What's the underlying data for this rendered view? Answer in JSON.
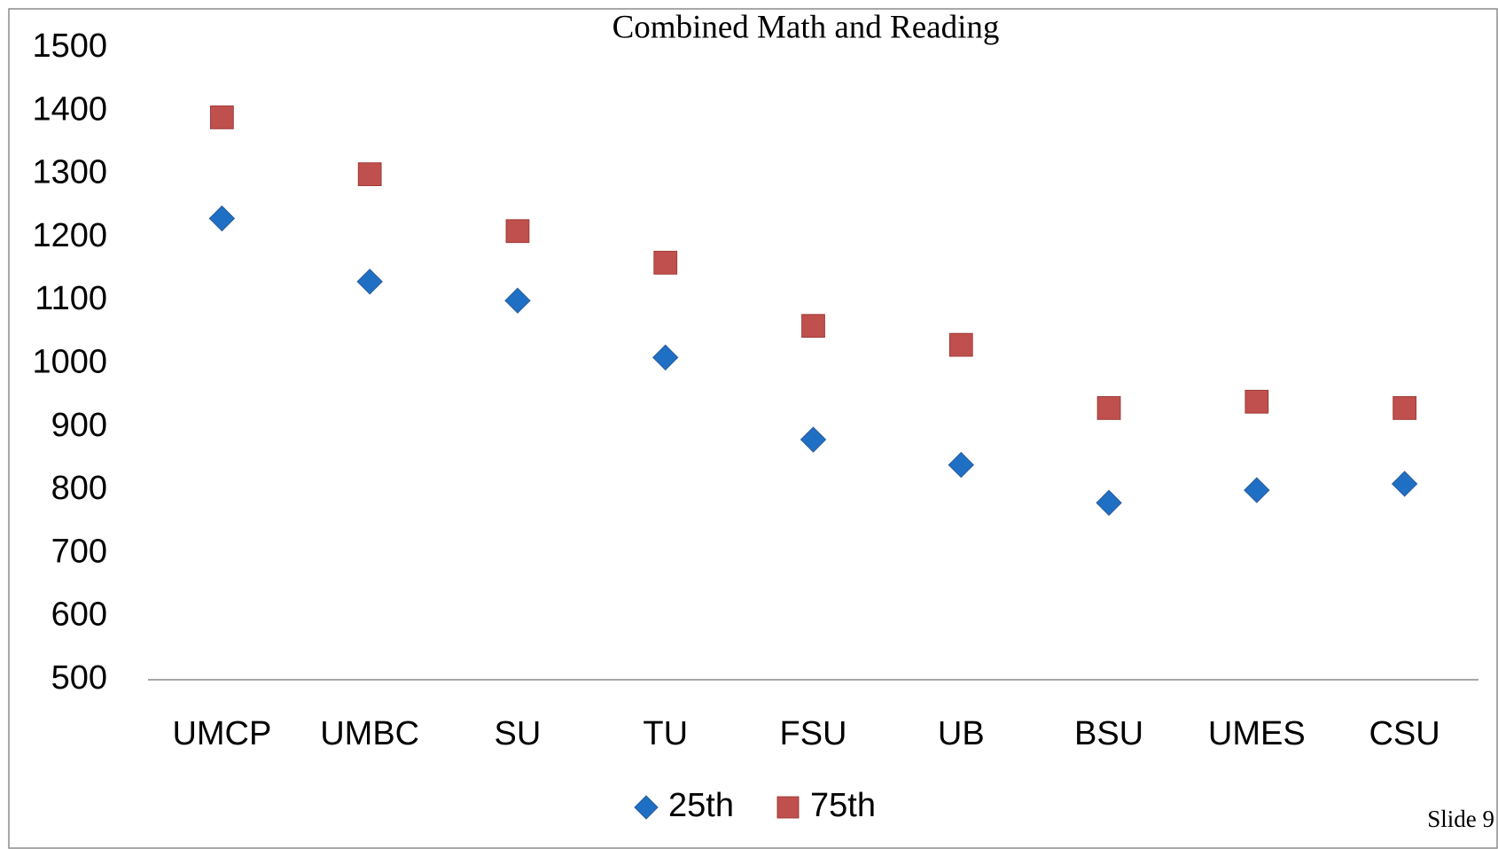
{
  "chart_data": {
    "type": "scatter",
    "title": "Combined Math and Reading",
    "categories": [
      "UMCP",
      "UMBC",
      "SU",
      "TU",
      "FSU",
      "UB",
      "BSU",
      "UMES",
      "CSU"
    ],
    "series": [
      {
        "name": "25th",
        "color": "#1f6fc5",
        "marker": "diamond",
        "values": [
          1230,
          1130,
          1100,
          1010,
          880,
          840,
          780,
          800,
          810
        ]
      },
      {
        "name": "75th",
        "color": "#c0504d",
        "marker": "square",
        "values": [
          1390,
          1300,
          1210,
          1160,
          1060,
          1030,
          930,
          940,
          930
        ]
      }
    ],
    "ylim": [
      500,
      1500
    ],
    "yticks": [
      500,
      600,
      700,
      800,
      900,
      1000,
      1100,
      1200,
      1300,
      1400,
      1500
    ],
    "grid": false,
    "legend": "bottom"
  },
  "footer": {
    "slide": "Slide 9"
  }
}
